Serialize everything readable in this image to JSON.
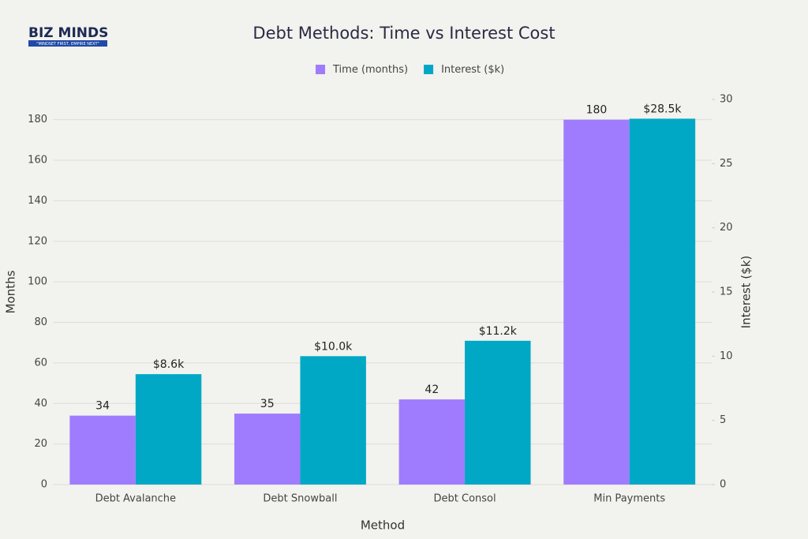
{
  "logo": {
    "name": "BIZ MINDS",
    "tagline": "\"MINDSET FIRST, EMPIRE NEXT\""
  },
  "chart_data": {
    "type": "bar",
    "title": "Debt Methods: Time vs Interest Cost",
    "x_label": "Method",
    "y_label": "Months",
    "y2_label": "Interest ($k)",
    "categories": [
      "Debt Avalanche",
      "Debt Snowball",
      "Debt Consol",
      "Min Payments"
    ],
    "series": [
      {
        "name": "Time (months)",
        "color": "#9f7cfd",
        "values": [
          34,
          35,
          42,
          180
        ]
      },
      {
        "name": "Interest ($k)",
        "color": "#00a8c6",
        "axis": "y2",
        "values": [
          8.6,
          10.0,
          11.2,
          28.5
        ],
        "value_labels": [
          "$8.6k",
          "$10.0k",
          "$11.2k",
          "$28.5k"
        ]
      }
    ],
    "ylim": [
      0,
      190
    ],
    "yticks": [
      0,
      20,
      40,
      60,
      80,
      100,
      120,
      140,
      160,
      180
    ],
    "y2lim": [
      0,
      30
    ],
    "y2ticks": [
      0,
      5,
      10,
      15,
      20,
      25,
      30
    ],
    "grid": true,
    "legend": "top"
  }
}
